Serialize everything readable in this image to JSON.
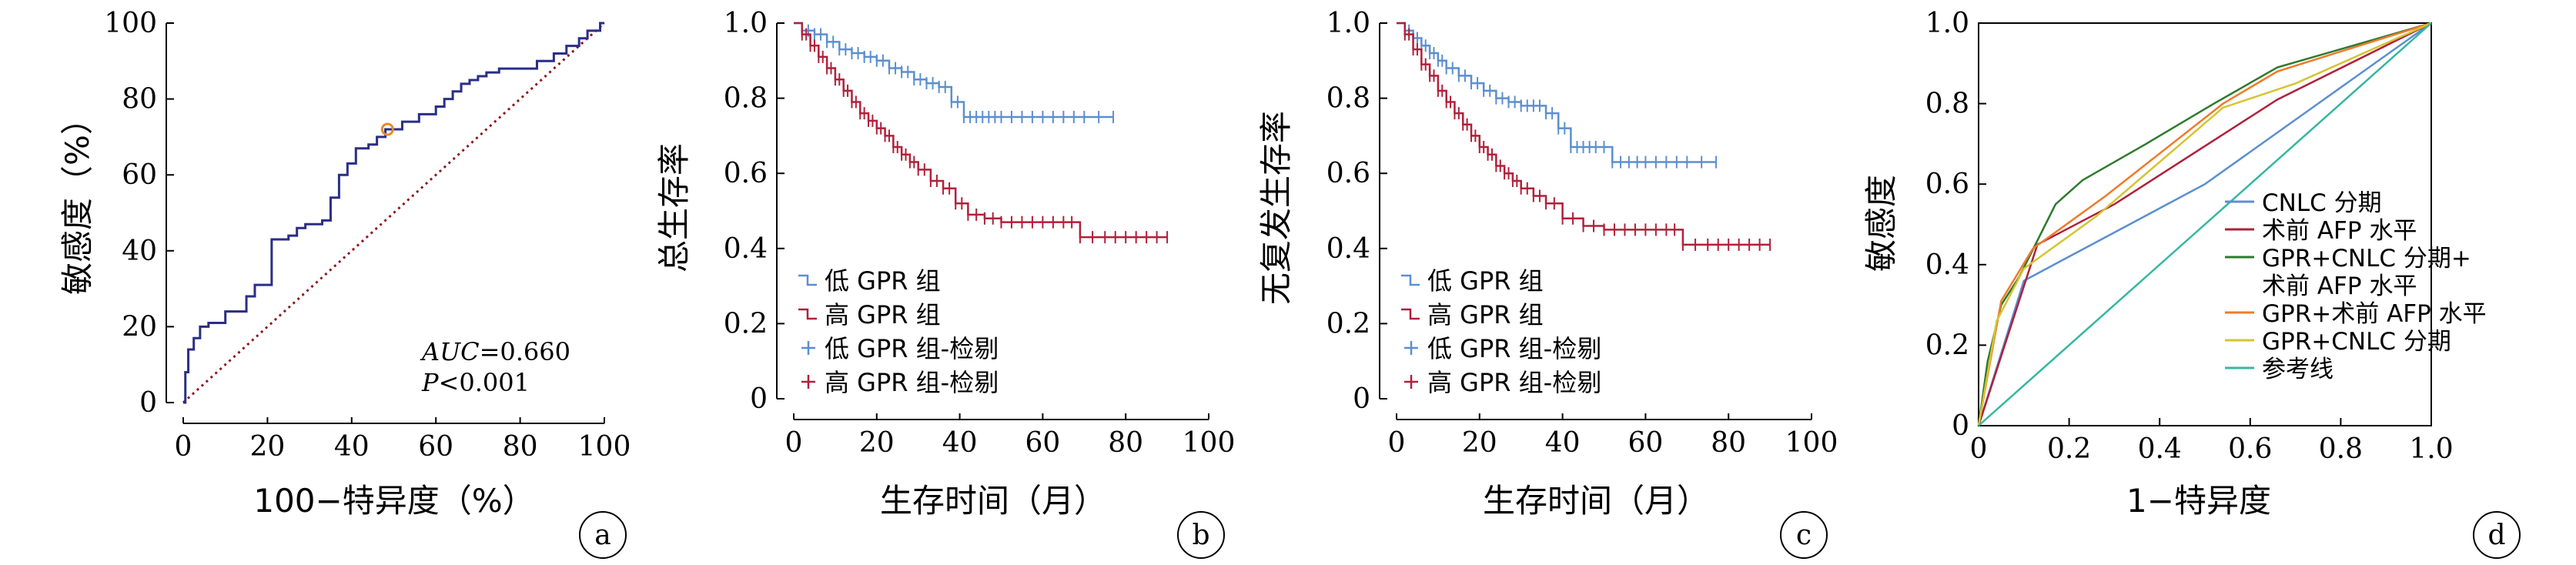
{
  "chart_data": [
    {
      "panel": "a",
      "type": "line",
      "xlabel": "100−特异度（%）",
      "ylabel": "敏感度（%）",
      "xlim": [
        0,
        100
      ],
      "ylim": [
        0,
        100
      ],
      "xticks": [
        "0",
        "20",
        "40",
        "60",
        "80",
        "100"
      ],
      "yticks": [
        "0",
        "20",
        "40",
        "60",
        "80",
        "100"
      ],
      "series": [
        {
          "color": "#2a2e86",
          "x": [
            0,
            0.5,
            0.5,
            1.2,
            1.2,
            2.5,
            2.5,
            4,
            4,
            6,
            6,
            10,
            10,
            15,
            15,
            17,
            17,
            21,
            21,
            25,
            25,
            27,
            27,
            29,
            29,
            33,
            33,
            35,
            35,
            37,
            37,
            39,
            39,
            41,
            41,
            44,
            44,
            46,
            46,
            48,
            48,
            52,
            52,
            56,
            56,
            60,
            60,
            62,
            62,
            64,
            64,
            66,
            66,
            68,
            68,
            70,
            70,
            72,
            72,
            75,
            75,
            78,
            78,
            84,
            84,
            88,
            88,
            91,
            91,
            94,
            94,
            96,
            96,
            99,
            99,
            100
          ],
          "y": [
            0,
            0,
            8,
            8,
            14,
            14,
            17,
            17,
            20,
            20,
            21,
            21,
            24,
            24,
            28,
            28,
            31,
            31,
            43,
            43,
            44,
            44,
            46,
            46,
            47,
            47,
            48,
            48,
            54,
            54,
            60,
            60,
            63,
            63,
            67,
            67,
            68,
            68,
            70,
            70,
            72,
            72,
            74,
            74,
            76,
            76,
            78,
            78,
            80,
            80,
            82,
            82,
            84,
            84,
            85,
            85,
            86,
            86,
            87,
            87,
            88,
            88,
            88,
            88,
            90,
            90,
            92,
            92,
            94,
            94,
            96,
            96,
            98,
            98,
            100,
            100
          ]
        }
      ],
      "reference_line": {
        "x": [
          0,
          100
        ],
        "y": [
          0,
          100
        ],
        "style": "dotted",
        "color": "#8b1a1a"
      },
      "cutoff_point": {
        "x": 48.5,
        "y": 72,
        "color": "#e88a2a"
      },
      "annotations": [
        "AUC=0.660",
        "P<0.001"
      ],
      "panel_label": "a"
    },
    {
      "panel": "b",
      "type": "line",
      "xlabel": "生存时间（月）",
      "ylabel": "总生存率",
      "xlim": [
        0,
        100
      ],
      "ylim": [
        0,
        1.0
      ],
      "xticks": [
        "0",
        "20",
        "40",
        "60",
        "80",
        "100"
      ],
      "yticks": [
        "0",
        "0.2",
        "0.4",
        "0.6",
        "0.8",
        "1.0"
      ],
      "series": [
        {
          "name": "低 GPR 组",
          "color": "#5b8fd0",
          "x": [
            0,
            2,
            5,
            8,
            11,
            14,
            17,
            20,
            23,
            26,
            29,
            32,
            35,
            38,
            41,
            44,
            47,
            50,
            55,
            60,
            65,
            70,
            77
          ],
          "y": [
            1.0,
            0.98,
            0.97,
            0.95,
            0.93,
            0.92,
            0.91,
            0.9,
            0.88,
            0.87,
            0.85,
            0.84,
            0.83,
            0.79,
            0.75,
            0.75,
            0.75,
            0.75,
            0.75,
            0.75,
            0.75,
            0.75,
            0.75
          ]
        },
        {
          "name": "高 GPR 组",
          "color": "#b0203a",
          "x": [
            0,
            2,
            4,
            6,
            8,
            10,
            12,
            14,
            16,
            18,
            20,
            22,
            24,
            26,
            28,
            30,
            33,
            36,
            39,
            42,
            46,
            50,
            55,
            60,
            65,
            69,
            75,
            80,
            85,
            90
          ],
          "y": [
            1.0,
            0.97,
            0.94,
            0.91,
            0.88,
            0.85,
            0.82,
            0.79,
            0.76,
            0.74,
            0.72,
            0.7,
            0.67,
            0.65,
            0.63,
            0.61,
            0.58,
            0.56,
            0.52,
            0.49,
            0.48,
            0.47,
            0.47,
            0.47,
            0.47,
            0.43,
            0.43,
            0.43,
            0.43,
            0.43
          ]
        }
      ],
      "legend": [
        "低 GPR 组",
        "高 GPR 组",
        "低 GPR 组-检剔",
        "高 GPR 组-检剔"
      ],
      "legend_position": "bottom-left",
      "panel_label": "b"
    },
    {
      "panel": "c",
      "type": "line",
      "xlabel": "生存时间（月）",
      "ylabel": "无复发生存率",
      "xlim": [
        0,
        100
      ],
      "ylim": [
        0,
        1.0
      ],
      "xticks": [
        "0",
        "20",
        "40",
        "60",
        "80",
        "100"
      ],
      "yticks": [
        "0",
        "0.2",
        "0.4",
        "0.6",
        "0.8",
        "1.0"
      ],
      "series": [
        {
          "name": "低 GPR 组",
          "color": "#5b8fd0",
          "x": [
            0,
            2,
            4,
            6,
            8,
            10,
            12,
            15,
            18,
            21,
            24,
            27,
            30,
            33,
            36,
            39,
            42,
            45,
            48,
            52,
            56,
            60,
            65,
            70,
            77
          ],
          "y": [
            1.0,
            0.98,
            0.96,
            0.94,
            0.92,
            0.9,
            0.88,
            0.86,
            0.84,
            0.82,
            0.8,
            0.79,
            0.78,
            0.78,
            0.76,
            0.72,
            0.67,
            0.67,
            0.67,
            0.63,
            0.63,
            0.63,
            0.63,
            0.63,
            0.63
          ]
        },
        {
          "name": "高 GPR 组",
          "color": "#b0203a",
          "x": [
            0,
            2,
            4,
            6,
            8,
            10,
            12,
            14,
            16,
            18,
            20,
            22,
            24,
            26,
            28,
            30,
            33,
            36,
            40,
            45,
            50,
            55,
            60,
            65,
            69,
            75,
            80,
            85,
            90
          ],
          "y": [
            1.0,
            0.97,
            0.93,
            0.89,
            0.86,
            0.82,
            0.79,
            0.76,
            0.73,
            0.7,
            0.67,
            0.65,
            0.62,
            0.6,
            0.58,
            0.56,
            0.54,
            0.52,
            0.48,
            0.46,
            0.45,
            0.45,
            0.45,
            0.45,
            0.41,
            0.41,
            0.41,
            0.41,
            0.41
          ]
        }
      ],
      "legend": [
        "低 GPR 组",
        "高 GPR 组",
        "低 GPR 组-检剔",
        "高 GPR 组-检剔"
      ],
      "legend_position": "bottom-left",
      "panel_label": "c"
    },
    {
      "panel": "d",
      "type": "line",
      "xlabel": "1−特异度",
      "ylabel": "敏感度",
      "xlim": [
        0,
        1.0
      ],
      "ylim": [
        0,
        1.0
      ],
      "xticks": [
        "0",
        "0.2",
        "0.4",
        "0.6",
        "0.8",
        "1.0"
      ],
      "yticks": [
        "0",
        "0.2",
        "0.4",
        "0.6",
        "0.8",
        "1.0"
      ],
      "series": [
        {
          "name": "CNLC 分期",
          "color": "#5b8fd0",
          "x": [
            0,
            0.1,
            0.3,
            0.5,
            1.0
          ],
          "y": [
            0,
            0.36,
            0.48,
            0.6,
            1.0
          ]
        },
        {
          "name": "术前 AFP 水平",
          "color": "#b0203a",
          "x": [
            0,
            0.13,
            0.3,
            0.66,
            1.0
          ],
          "y": [
            0,
            0.45,
            0.55,
            0.81,
            1.0
          ]
        },
        {
          "name": "GPR+CNLC 分期+术前 AFP 水平",
          "color": "#2d7a2d",
          "x": [
            0,
            0.02,
            0.05,
            0.09,
            0.17,
            0.23,
            0.37,
            0.52,
            0.66,
            1.0
          ],
          "y": [
            0,
            0.16,
            0.3,
            0.37,
            0.55,
            0.61,
            0.7,
            0.8,
            0.89,
            1.0
          ]
        },
        {
          "name": "GPR+术前 AFP 水平",
          "color": "#f07a2a",
          "x": [
            0,
            0.05,
            0.12,
            0.28,
            0.54,
            0.66,
            1.0
          ],
          "y": [
            0,
            0.31,
            0.44,
            0.57,
            0.8,
            0.88,
            1.0
          ]
        },
        {
          "name": "GPR+CNLC 分期",
          "color": "#d4c531",
          "x": [
            0,
            0.04,
            0.1,
            0.26,
            0.54,
            0.7,
            1.0
          ],
          "y": [
            0,
            0.26,
            0.39,
            0.52,
            0.79,
            0.85,
            1.0
          ]
        },
        {
          "name": "参考线",
          "color": "#33b8a0",
          "x": [
            0,
            1.0
          ],
          "y": [
            0,
            1.0
          ]
        }
      ],
      "legend": [
        "CNLC 分期",
        "术前 AFP 水平",
        "GPR+CNLC 分期+",
        "术前 AFP 水平",
        "GPR+术前 AFP 水平",
        "GPR+CNLC 分期",
        "参考线"
      ],
      "legend_position": "bottom-right",
      "panel_label": "d"
    }
  ]
}
